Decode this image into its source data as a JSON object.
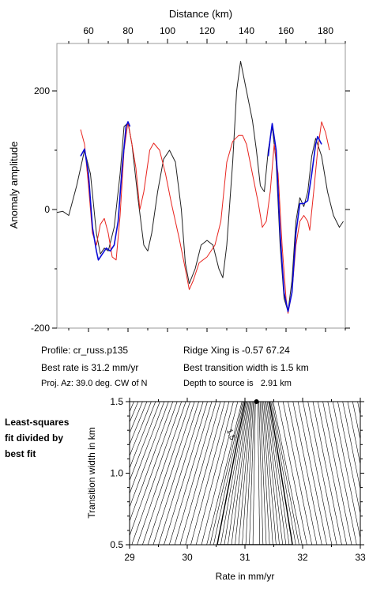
{
  "chart_data": [
    {
      "type": "line",
      "xlabel": "Distance (km)",
      "ylabel": "Anomaly amplitude",
      "xlim": [
        44,
        190
      ],
      "ylim": [
        -200,
        280
      ],
      "x_ticks": [
        "60",
        "80",
        "100",
        "120",
        "140",
        "160",
        "180"
      ],
      "y_ticks": [
        "200",
        "0",
        "-200"
      ],
      "series": [
        {
          "color": "#222222",
          "points": [
            [
              44,
              -5
            ],
            [
              47,
              -3
            ],
            [
              50,
              -10
            ],
            [
              54,
              40
            ],
            [
              58,
              100
            ],
            [
              61,
              60
            ],
            [
              64,
              -40
            ],
            [
              66,
              -75
            ],
            [
              68,
              -65
            ],
            [
              70,
              -70
            ],
            [
              73,
              -30
            ],
            [
              76,
              60
            ],
            [
              78,
              140
            ],
            [
              80,
              146
            ],
            [
              82,
              110
            ],
            [
              85,
              20
            ],
            [
              88,
              -60
            ],
            [
              90,
              -70
            ],
            [
              92,
              -40
            ],
            [
              95,
              30
            ],
            [
              98,
              85
            ],
            [
              101,
              100
            ],
            [
              104,
              80
            ],
            [
              107,
              0
            ],
            [
              109,
              -90
            ],
            [
              111,
              -125
            ],
            [
              114,
              -100
            ],
            [
              117,
              -60
            ],
            [
              120,
              -52
            ],
            [
              123,
              -60
            ],
            [
              126,
              -100
            ],
            [
              128,
              -115
            ],
            [
              130,
              -60
            ],
            [
              133,
              80
            ],
            [
              135,
              200
            ],
            [
              137,
              250
            ],
            [
              140,
              200
            ],
            [
              143,
              150
            ],
            [
              145,
              100
            ],
            [
              147,
              40
            ],
            [
              149,
              30
            ],
            [
              151,
              100
            ],
            [
              153,
              140
            ],
            [
              155,
              80
            ],
            [
              157,
              -60
            ],
            [
              159,
              -150
            ],
            [
              161,
              -172
            ],
            [
              163,
              -120
            ],
            [
              165,
              -20
            ],
            [
              167,
              20
            ],
            [
              169,
              5
            ],
            [
              171,
              30
            ],
            [
              173,
              90
            ],
            [
              175,
              120
            ],
            [
              178,
              90
            ],
            [
              181,
              30
            ],
            [
              184,
              -10
            ],
            [
              187,
              -30
            ],
            [
              189,
              -20
            ]
          ]
        },
        {
          "color": "#e8251f",
          "points": [
            [
              56,
              135
            ],
            [
              58,
              110
            ],
            [
              60,
              40
            ],
            [
              62,
              -40
            ],
            [
              64,
              -60
            ],
            [
              66,
              -25
            ],
            [
              68,
              -15
            ],
            [
              70,
              -40
            ],
            [
              72,
              -80
            ],
            [
              74,
              -85
            ],
            [
              76,
              -10
            ],
            [
              78,
              100
            ],
            [
              80,
              148
            ],
            [
              82,
              110
            ],
            [
              84,
              70
            ],
            [
              86,
              0
            ],
            [
              88,
              30
            ],
            [
              91,
              100
            ],
            [
              93,
              112
            ],
            [
              96,
              100
            ],
            [
              99,
              60
            ],
            [
              102,
              10
            ],
            [
              106,
              -50
            ],
            [
              109,
              -100
            ],
            [
              111,
              -135
            ],
            [
              113,
              -120
            ],
            [
              116,
              -90
            ],
            [
              120,
              -80
            ],
            [
              124,
              -60
            ],
            [
              127,
              -20
            ],
            [
              130,
              80
            ],
            [
              133,
              115
            ],
            [
              136,
              125
            ],
            [
              138,
              125
            ],
            [
              140,
              110
            ],
            [
              143,
              60
            ],
            [
              146,
              10
            ],
            [
              148,
              -30
            ],
            [
              150,
              -20
            ],
            [
              152,
              30
            ],
            [
              154,
              110
            ],
            [
              156,
              60
            ],
            [
              158,
              -60
            ],
            [
              160,
              -150
            ],
            [
              161,
              -175
            ],
            [
              163,
              -140
            ],
            [
              165,
              -60
            ],
            [
              167,
              -20
            ],
            [
              169,
              -10
            ],
            [
              171,
              -20
            ],
            [
              172,
              -35
            ],
            [
              174,
              30
            ],
            [
              176,
              100
            ],
            [
              178,
              148
            ],
            [
              180,
              130
            ],
            [
              182,
              100
            ]
          ]
        },
        {
          "color": "#0a0ad8",
          "points": [
            [
              56,
              90
            ],
            [
              58,
              102
            ],
            [
              60,
              60
            ],
            [
              62,
              -30
            ],
            [
              64,
              -70
            ],
            [
              65,
              -85
            ],
            [
              67,
              -75
            ],
            [
              69,
              -65
            ],
            [
              71,
              -70
            ],
            [
              73,
              -60
            ],
            [
              75,
              -20
            ],
            [
              77,
              70
            ],
            [
              79,
              140
            ],
            [
              80,
              148
            ],
            [
              81,
              140
            ],
            [
              151,
              90
            ],
            [
              152,
              120
            ],
            [
              153,
              145
            ],
            [
              155,
              100
            ],
            [
              157,
              -40
            ],
            [
              159,
              -140
            ],
            [
              161,
              -172
            ],
            [
              163,
              -140
            ],
            [
              165,
              -40
            ],
            [
              167,
              10
            ],
            [
              169,
              10
            ],
            [
              171,
              15
            ],
            [
              173,
              60
            ],
            [
              175,
              110
            ],
            [
              176,
              123
            ],
            [
              178,
              110
            ]
          ]
        }
      ]
    },
    {
      "type": "contour",
      "xlabel": "Rate in mm/yr",
      "ylabel": "Transition width in km",
      "xlim": [
        29,
        33
      ],
      "ylim": [
        0.5,
        1.5
      ],
      "x_ticks": [
        "29",
        "30",
        "31",
        "32",
        "33"
      ],
      "y_ticks": [
        "0.5",
        "1.0",
        "1.5"
      ],
      "contour_label": "1.5",
      "best_fit_point": {
        "rate": 31.2,
        "width": 1.5
      }
    }
  ],
  "info": {
    "profile": "Profile: cr_russ.p135",
    "best_rate": "Best rate is 31.2 mm/yr",
    "proj_az": "Proj. Az: 39.0 deg. CW of N",
    "ridge_xing": "Ridge Xing is -0.57 67.24",
    "best_width": "Best transition width is 1.5 km",
    "depth": "Depth to source is   2.91 km"
  },
  "side_label": [
    "Least-squares",
    "fit divided by",
    "best fit"
  ]
}
